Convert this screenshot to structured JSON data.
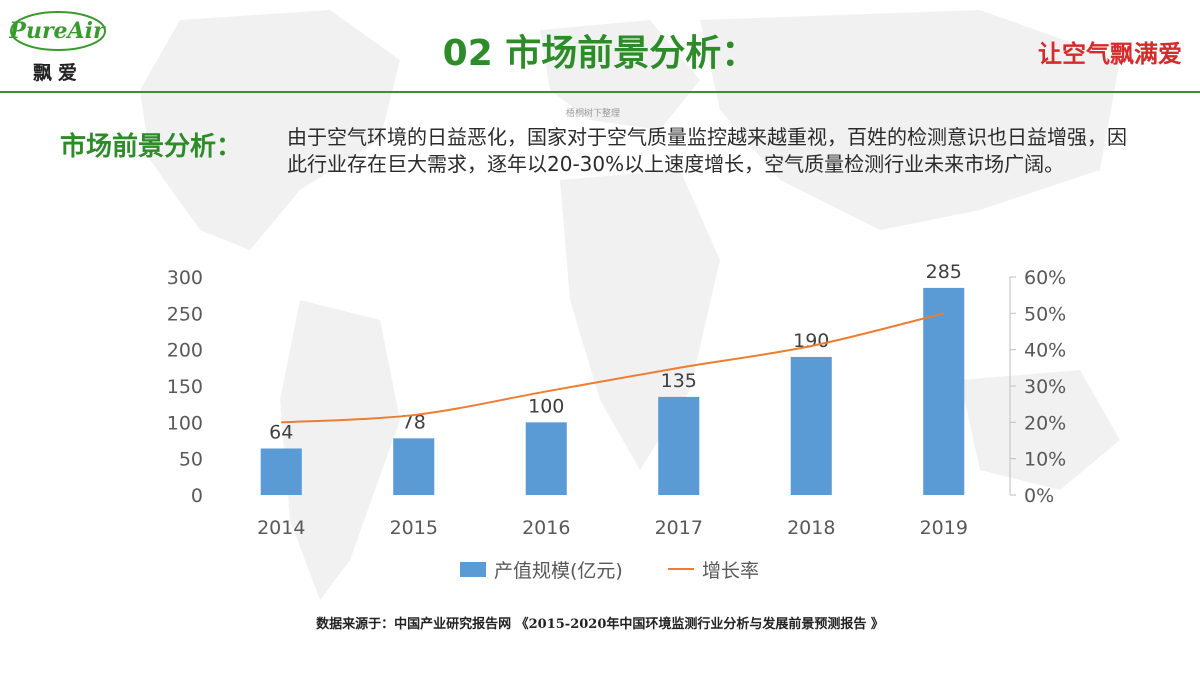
{
  "logo": {
    "brand_en": "PureAir",
    "brand_cn": "飘爱"
  },
  "header": {
    "title": "02 市场前景分析：",
    "slogan": "让空气飘满爱"
  },
  "watermark": "梧桐树下整理",
  "section": {
    "heading": "市场前景分析：",
    "body": "由于空气环境的日益恶化，国家对于空气质量监控越来越重视，百姓的检测意识也日益增强，因此行业存在巨大需求，逐年以20-30%以上速度增长，空气质量检测行业未来市场广阔。"
  },
  "chart_data": {
    "type": "bar",
    "categories": [
      "2014",
      "2015",
      "2016",
      "2017",
      "2018",
      "2019"
    ],
    "series": [
      {
        "name": "产值规模(亿元)",
        "type": "bar",
        "axis": "left",
        "values": [
          64,
          78,
          100,
          135,
          190,
          285
        ],
        "color": "#5b9bd5"
      },
      {
        "name": "增长率",
        "type": "line",
        "axis": "right",
        "values": [
          20,
          22,
          28.5,
          35,
          41,
          50
        ],
        "color": "#ed7d31"
      }
    ],
    "left_axis": {
      "min": 0,
      "max": 300,
      "ticks": [
        "0",
        "50",
        "100",
        "150",
        "200",
        "250",
        "300"
      ]
    },
    "right_axis": {
      "min": 0,
      "max": 60,
      "ticks": [
        "0%",
        "10%",
        "20%",
        "30%",
        "40%",
        "50%",
        "60%"
      ]
    },
    "data_labels": [
      "64",
      "78",
      "100",
      "135",
      "190",
      "285"
    ],
    "legend_position": "bottom"
  },
  "source": "数据来源于：中国产业研究报告网 《2015-2020年中国环境监测行业分析与发展前景预测报告 》"
}
